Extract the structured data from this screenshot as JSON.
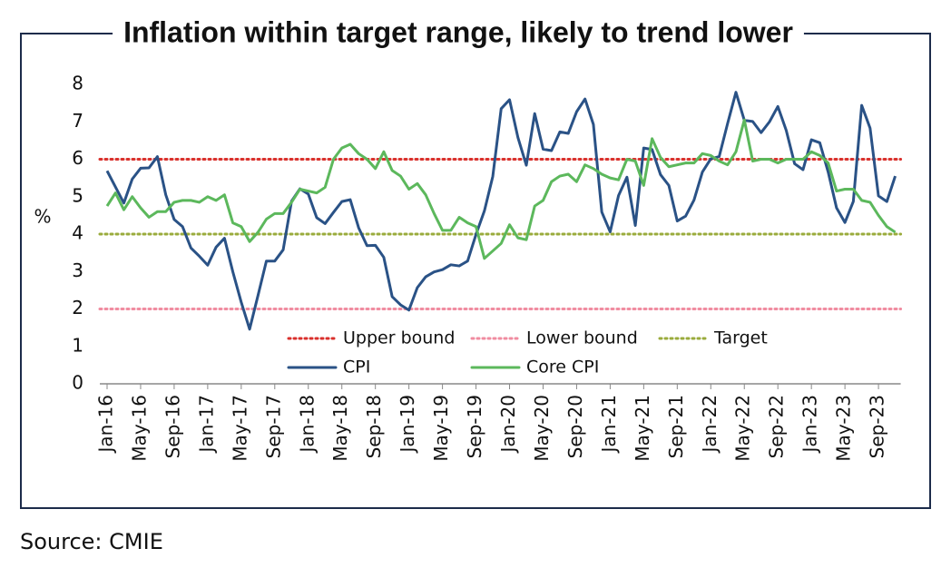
{
  "chart_data": {
    "type": "line",
    "title": "Inflation within target range, likely to trend lower",
    "y_label": "%",
    "source": "Source: CMIE",
    "categories": [
      "Jan-16",
      null,
      null,
      null,
      "May-16",
      null,
      null,
      null,
      "Sep-16",
      null,
      null,
      null,
      "Jan-17",
      null,
      null,
      null,
      "May-17",
      null,
      null,
      null,
      "Sep-17",
      null,
      null,
      null,
      "Jan-18",
      null,
      null,
      null,
      "May-18",
      null,
      null,
      null,
      "Sep-18",
      null,
      null,
      null,
      "Jan-19",
      null,
      null,
      null,
      "May-19",
      null,
      null,
      null,
      "Sep-19",
      null,
      null,
      null,
      "Jan-20",
      null,
      null,
      null,
      "May-20",
      null,
      null,
      null,
      "Sep-20",
      null,
      null,
      null,
      "Jan-21",
      null,
      null,
      null,
      "May-21",
      null,
      null,
      null,
      "Sep-21",
      null,
      null,
      null,
      "Jan-22",
      null,
      null,
      null,
      "May-22",
      null,
      null,
      null,
      "Sep-22",
      null,
      null,
      null,
      "Jan-23",
      null,
      null,
      null,
      "May-23",
      null,
      null,
      null,
      "Sep-23",
      null,
      null
    ],
    "reference_lines": [
      {
        "name": "Upper bound",
        "value": 6,
        "color": "#d9302c"
      },
      {
        "name": "Lower bound",
        "value": 2,
        "color": "#f08ca0"
      },
      {
        "name": "Target",
        "value": 4,
        "color": "#9aab3c"
      }
    ],
    "series": [
      {
        "name": "CPI",
        "color": "#2a5286",
        "values": [
          5.69,
          5.26,
          4.83,
          5.47,
          5.76,
          5.77,
          6.07,
          5.05,
          4.39,
          4.2,
          3.63,
          3.41,
          3.17,
          3.65,
          3.89,
          2.99,
          2.18,
          1.46,
          2.36,
          3.28,
          3.28,
          3.58,
          4.88,
          5.21,
          5.07,
          4.44,
          4.28,
          4.58,
          4.87,
          4.92,
          4.17,
          3.69,
          3.7,
          3.38,
          2.33,
          2.11,
          1.97,
          2.57,
          2.86,
          2.99,
          3.05,
          3.18,
          3.15,
          3.28,
          3.99,
          4.62,
          5.54,
          7.35,
          7.59,
          6.58,
          5.84,
          7.22,
          6.27,
          6.23,
          6.73,
          6.69,
          7.27,
          7.61,
          6.93,
          4.59,
          4.06,
          5.03,
          5.52,
          4.23,
          6.3,
          6.26,
          5.59,
          5.3,
          4.35,
          4.48,
          4.91,
          5.66,
          6.01,
          6.07,
          6.95,
          7.79,
          7.04,
          7.01,
          6.71,
          7.0,
          7.41,
          6.77,
          5.88,
          5.72,
          6.52,
          6.44,
          5.66,
          4.7,
          4.31,
          4.87,
          7.44,
          6.83,
          5.02,
          4.87,
          5.55
        ]
      },
      {
        "name": "Core CPI",
        "color": "#5cb85c",
        "values": [
          4.75,
          5.1,
          4.65,
          5.0,
          4.7,
          4.45,
          4.6,
          4.6,
          4.85,
          4.9,
          4.9,
          4.85,
          5.0,
          4.9,
          5.05,
          4.3,
          4.2,
          3.8,
          4.05,
          4.4,
          4.55,
          4.55,
          4.85,
          5.2,
          5.15,
          5.1,
          5.25,
          6.0,
          6.3,
          6.4,
          6.15,
          6.0,
          5.75,
          6.2,
          5.7,
          5.55,
          5.2,
          5.35,
          5.05,
          4.55,
          4.1,
          4.1,
          4.45,
          4.3,
          4.2,
          3.35,
          3.55,
          3.75,
          4.25,
          3.9,
          3.85,
          4.75,
          4.9,
          5.4,
          5.55,
          5.6,
          5.4,
          5.85,
          5.75,
          5.6,
          5.5,
          5.45,
          6.0,
          5.95,
          5.3,
          6.55,
          6.05,
          5.8,
          5.85,
          5.9,
          5.9,
          6.15,
          6.1,
          5.95,
          5.85,
          6.2,
          7.05,
          5.95,
          6.0,
          6.0,
          5.9,
          6.0,
          6.0,
          6.0,
          6.2,
          6.1,
          5.9,
          5.15,
          5.2,
          5.2,
          4.9,
          4.85,
          4.5,
          4.2,
          4.05
        ]
      }
    ],
    "ylim": [
      0,
      8
    ],
    "yticks": [
      0,
      1,
      2,
      3,
      4,
      5,
      6,
      7,
      8
    ],
    "grid": false
  }
}
